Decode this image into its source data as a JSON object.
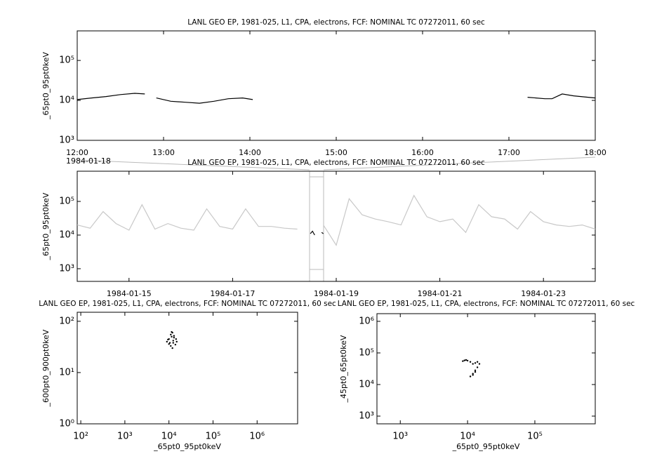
{
  "chart_data": [
    {
      "type": "line",
      "title": "LANL GEO EP, 1981-025, L1, CPA, electrons, FCF: NOMINAL TC 07272011, 60 sec",
      "y_label": "_65pt0_95pt0keV",
      "date_label": "1984-01-18",
      "ylog": true,
      "xlim": [
        "12:00",
        "18:00"
      ],
      "xticks": [
        "12:00",
        "13:00",
        "14:00",
        "15:00",
        "16:00",
        "17:00",
        "18:00"
      ],
      "ylim": [
        1000,
        550000
      ],
      "yticks": [
        {
          "value": 1000,
          "label": "10³"
        },
        {
          "value": 10000,
          "label": "10⁴"
        },
        {
          "value": 100000,
          "label": "10⁵"
        }
      ],
      "x": [
        "12:00",
        "12:10",
        "12:20",
        "12:30",
        "12:40",
        "12:47",
        "12:51",
        "12:55",
        "13:05",
        "13:15",
        "13:25",
        "13:35",
        "13:45",
        "13:55",
        "14:02",
        "15:30",
        "17:13",
        "17:25",
        "17:30",
        "17:37",
        "17:45",
        "17:55",
        "18:00"
      ],
      "series": [
        {
          "color": "#000000",
          "values": [
            10500,
            11500,
            12500,
            14000,
            15000,
            14500,
            null,
            11500,
            9500,
            9000,
            8500,
            9500,
            11000,
            11500,
            10500,
            null,
            12000,
            11000,
            11000,
            14500,
            13000,
            12000,
            11500
          ]
        }
      ]
    },
    {
      "type": "line",
      "title": "LANL GEO EP, 1981-025, L1, CPA, electrons, FCF: NOMINAL TC 07272011, 60 sec",
      "y_label": "_65pt0_95pt0keV",
      "ylog": true,
      "xlim": [
        "1984-01-14",
        "1984-01-24"
      ],
      "xticks": [
        "1984-01-15",
        "1984-01-17",
        "1984-01-19",
        "1984-01-21",
        "1984-01-23"
      ],
      "ylim": [
        420,
        790000
      ],
      "yticks": [
        {
          "value": 1000,
          "label": "10³"
        },
        {
          "value": 10000,
          "label": "10⁴"
        },
        {
          "value": 100000,
          "label": "10⁵"
        }
      ],
      "series": [
        {
          "color": "#c8c8c8",
          "x": [
            "1984-01-14 00:00",
            "1984-01-14 06:00",
            "1984-01-14 12:00",
            "1984-01-14 18:00",
            "1984-01-15 00:00",
            "1984-01-15 06:00",
            "1984-01-15 12:00",
            "1984-01-15 18:00",
            "1984-01-16 00:00",
            "1984-01-16 06:00",
            "1984-01-16 12:00",
            "1984-01-16 18:00",
            "1984-01-17 00:00",
            "1984-01-17 06:00",
            "1984-01-17 12:00",
            "1984-01-17 18:00",
            "1984-01-18 00:00",
            "1984-01-18 06:00",
            "1984-01-18 12:00",
            "1984-01-18 18:00",
            "1984-01-19 00:00",
            "1984-01-19 06:00",
            "1984-01-19 12:00",
            "1984-01-19 18:00",
            "1984-01-20 00:00",
            "1984-01-20 06:00",
            "1984-01-20 12:00",
            "1984-01-20 18:00",
            "1984-01-21 00:00",
            "1984-01-21 06:00",
            "1984-01-21 12:00",
            "1984-01-21 18:00",
            "1984-01-22 00:00",
            "1984-01-22 06:00",
            "1984-01-22 12:00",
            "1984-01-22 18:00",
            "1984-01-23 00:00",
            "1984-01-23 06:00",
            "1984-01-23 12:00",
            "1984-01-23 18:00",
            "1984-01-24 00:00"
          ],
          "values": [
            20000,
            16000,
            50000,
            22000,
            14000,
            80000,
            15000,
            22000,
            16000,
            14000,
            60000,
            18000,
            15000,
            60000,
            18000,
            18000,
            16000,
            15000,
            null,
            20000,
            5000,
            120000,
            40000,
            30000,
            25000,
            20000,
            150000,
            35000,
            25000,
            30000,
            12000,
            80000,
            35000,
            30000,
            15000,
            50000,
            25000,
            20000,
            18000,
            20000,
            15000
          ]
        },
        {
          "color": "#000000",
          "x": [
            "1984-01-18 12:00",
            "1984-01-18 13:00",
            "1984-01-18 14:00",
            "1984-01-18 15:00",
            "1984-01-18 17:15",
            "1984-01-18 18:00"
          ],
          "values": [
            11000,
            13000,
            10000,
            null,
            12000,
            11000
          ]
        }
      ]
    },
    {
      "type": "scatter",
      "title": "LANL GEO EP, 1981-025, L1, CPA, electrons, FCF: NOMINAL TC 07272011, 60 sec",
      "x_label": "_65pt0_95pt0keV",
      "y_label": "_600pt0_900pt0keV",
      "xlog": true,
      "ylog": true,
      "xlim": [
        83,
        8300000
      ],
      "xticks": [
        {
          "value": 100,
          "label": "10²"
        },
        {
          "value": 1000,
          "label": "10³"
        },
        {
          "value": 10000,
          "label": "10⁴"
        },
        {
          "value": 100000,
          "label": "10⁵"
        },
        {
          "value": 1000000,
          "label": "10⁶"
        }
      ],
      "ylim": [
        1,
        150
      ],
      "yticks": [
        {
          "value": 1,
          "label": "10⁰"
        },
        {
          "value": 10,
          "label": "10¹"
        },
        {
          "value": 100,
          "label": "10²"
        }
      ],
      "series": [
        {
          "color": "#000000",
          "x": [
            9000,
            10000,
            10500,
            11000,
            11500,
            12000,
            12500,
            13000,
            14000,
            15000,
            10000,
            11000,
            12000,
            13000,
            9500,
            11500,
            12500,
            14500
          ],
          "values": [
            40,
            45,
            38,
            55,
            50,
            60,
            42,
            48,
            35,
            40,
            36,
            33,
            30,
            52,
            44,
            62,
            38,
            45
          ]
        }
      ]
    },
    {
      "type": "scatter",
      "title": "LANL GEO EP, 1981-025, L1, CPA, electrons, FCF: NOMINAL TC 07272011, 60 sec",
      "x_label": "_65pt0_95pt0keV",
      "y_label": "_45pt0_65pt0keV",
      "xlog": true,
      "ylog": true,
      "xlim": [
        450,
        790000
      ],
      "xticks": [
        {
          "value": 1000,
          "label": "10³"
        },
        {
          "value": 10000,
          "label": "10⁴"
        },
        {
          "value": 100000,
          "label": "10⁵"
        }
      ],
      "ylim": [
        570,
        1750000
      ],
      "yticks": [
        {
          "value": 1000,
          "label": "10³"
        },
        {
          "value": 10000,
          "label": "10⁴"
        },
        {
          "value": 100000,
          "label": "10⁵"
        },
        {
          "value": 1000000,
          "label": "10⁶"
        }
      ],
      "series": [
        {
          "color": "#000000",
          "x": [
            8500,
            9000,
            9500,
            10000,
            11000,
            12000,
            13000,
            14000,
            15000,
            14000,
            13000,
            12000,
            11000,
            12000,
            13000
          ],
          "values": [
            55000,
            58000,
            60000,
            57000,
            52000,
            45000,
            48000,
            52000,
            45000,
            35000,
            28000,
            22000,
            18000,
            20000,
            25000
          ]
        }
      ]
    }
  ]
}
